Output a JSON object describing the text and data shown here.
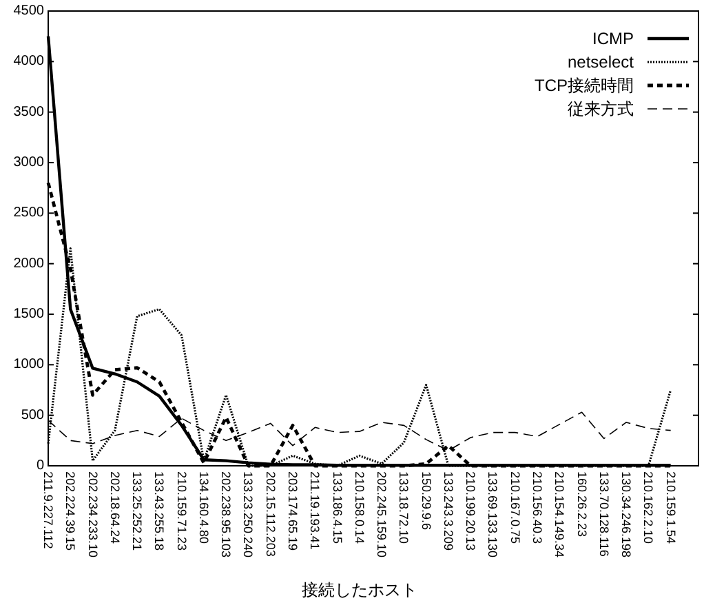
{
  "chart_data": {
    "type": "line",
    "xlabel": "接続したホスト",
    "categories": [
      "211.9.227.112",
      "202.224.39.15",
      "202.234.233.10",
      "202.18.64.24",
      "133.25.252.21",
      "133.43.255.18",
      "210.159.71.23",
      "134.160.4.80",
      "202.238.95.103",
      "133.23.250.240",
      "202.15.112.203",
      "203.174.65.19",
      "211.19.193.41",
      "133.186.4.15",
      "210.158.0.14",
      "202.245.159.10",
      "133.18.72.10",
      "150.29.9.6",
      "133.243.3.209",
      "210.199.20.13",
      "133.69.133.130",
      "210.167.0.75",
      "210.156.40.3",
      "210.154.149.34",
      "160.26.2.23",
      "133.70.128.116",
      "130.34.246.198",
      "210.162.2.10",
      "210.159.1.54"
    ],
    "series": [
      {
        "name": "ICMP",
        "color": "#000000",
        "line_style": "solid",
        "values": [
          4250,
          1550,
          965,
          910,
          830,
          690,
          400,
          60,
          50,
          30,
          15,
          10,
          10,
          5,
          5,
          5,
          5,
          5,
          5,
          5,
          5,
          5,
          5,
          5,
          5,
          5,
          5,
          5,
          5
        ]
      },
      {
        "name": "netselect",
        "color": "#000000",
        "line_style": "dotted",
        "values": [
          220,
          2150,
          50,
          350,
          1480,
          1550,
          1290,
          50,
          700,
          0,
          0,
          100,
          20,
          0,
          100,
          20,
          230,
          800,
          0,
          0,
          0,
          0,
          0,
          0,
          0,
          0,
          0,
          0,
          750
        ]
      },
      {
        "name": "TCP接続時間",
        "color": "#000000",
        "line_style": "dashed",
        "values": [
          2800,
          1950,
          700,
          950,
          970,
          830,
          430,
          30,
          480,
          0,
          0,
          400,
          0,
          0,
          0,
          0,
          0,
          20,
          200,
          0,
          0,
          0,
          0,
          0,
          0,
          0,
          0,
          0,
          0
        ]
      },
      {
        "name": "従来方式",
        "color": "#000000",
        "line_style": "dashed",
        "values": [
          450,
          250,
          220,
          300,
          350,
          290,
          470,
          350,
          250,
          330,
          420,
          200,
          380,
          330,
          340,
          430,
          400,
          260,
          150,
          280,
          330,
          330,
          290,
          410,
          530,
          270,
          430,
          370,
          350
        ]
      }
    ],
    "ylim": [
      0,
      4500
    ],
    "yticks": [
      0,
      500,
      1000,
      1500,
      2000,
      2500,
      3000,
      3500,
      4000,
      4500
    ],
    "grid": false,
    "legend": "top right"
  }
}
